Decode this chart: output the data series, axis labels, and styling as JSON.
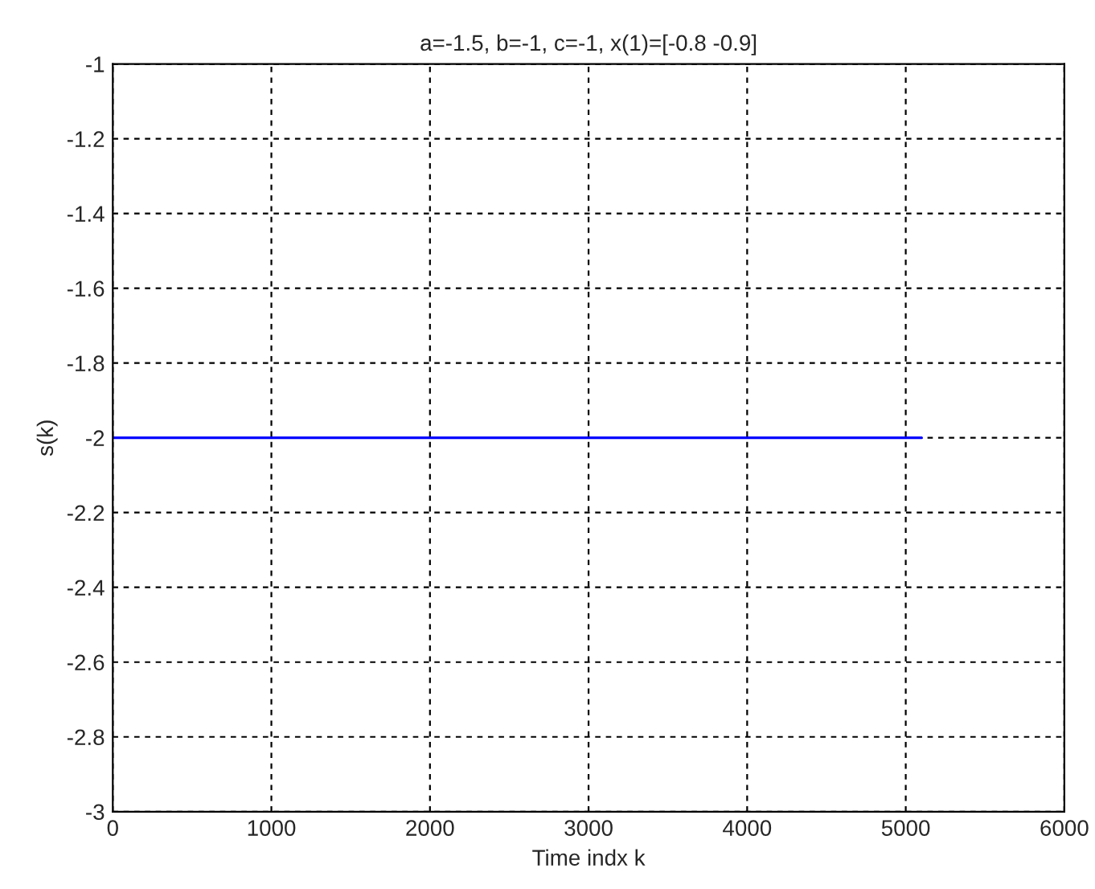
{
  "chart_data": {
    "type": "line",
    "title": "a=-1.5, b=-1, c=-1, x(1)=[-0.8 -0.9]",
    "xlabel": "Time indx k",
    "ylabel": "s(k)",
    "x": [
      0,
      5100
    ],
    "series": [
      {
        "color": "#0000ff",
        "values": [
          -2,
          -2
        ]
      }
    ],
    "xlim": [
      0,
      6000
    ],
    "xticks": [
      0,
      1000,
      2000,
      3000,
      4000,
      5000,
      6000
    ],
    "ylim": [
      -3,
      -1
    ],
    "yticks": [
      -3,
      -2.8,
      -2.6,
      -2.4,
      -2.2,
      -2,
      -1.8,
      -1.6,
      -1.4,
      -1.2,
      -1
    ],
    "grid": true,
    "marker": "none",
    "line_style": "solid"
  }
}
